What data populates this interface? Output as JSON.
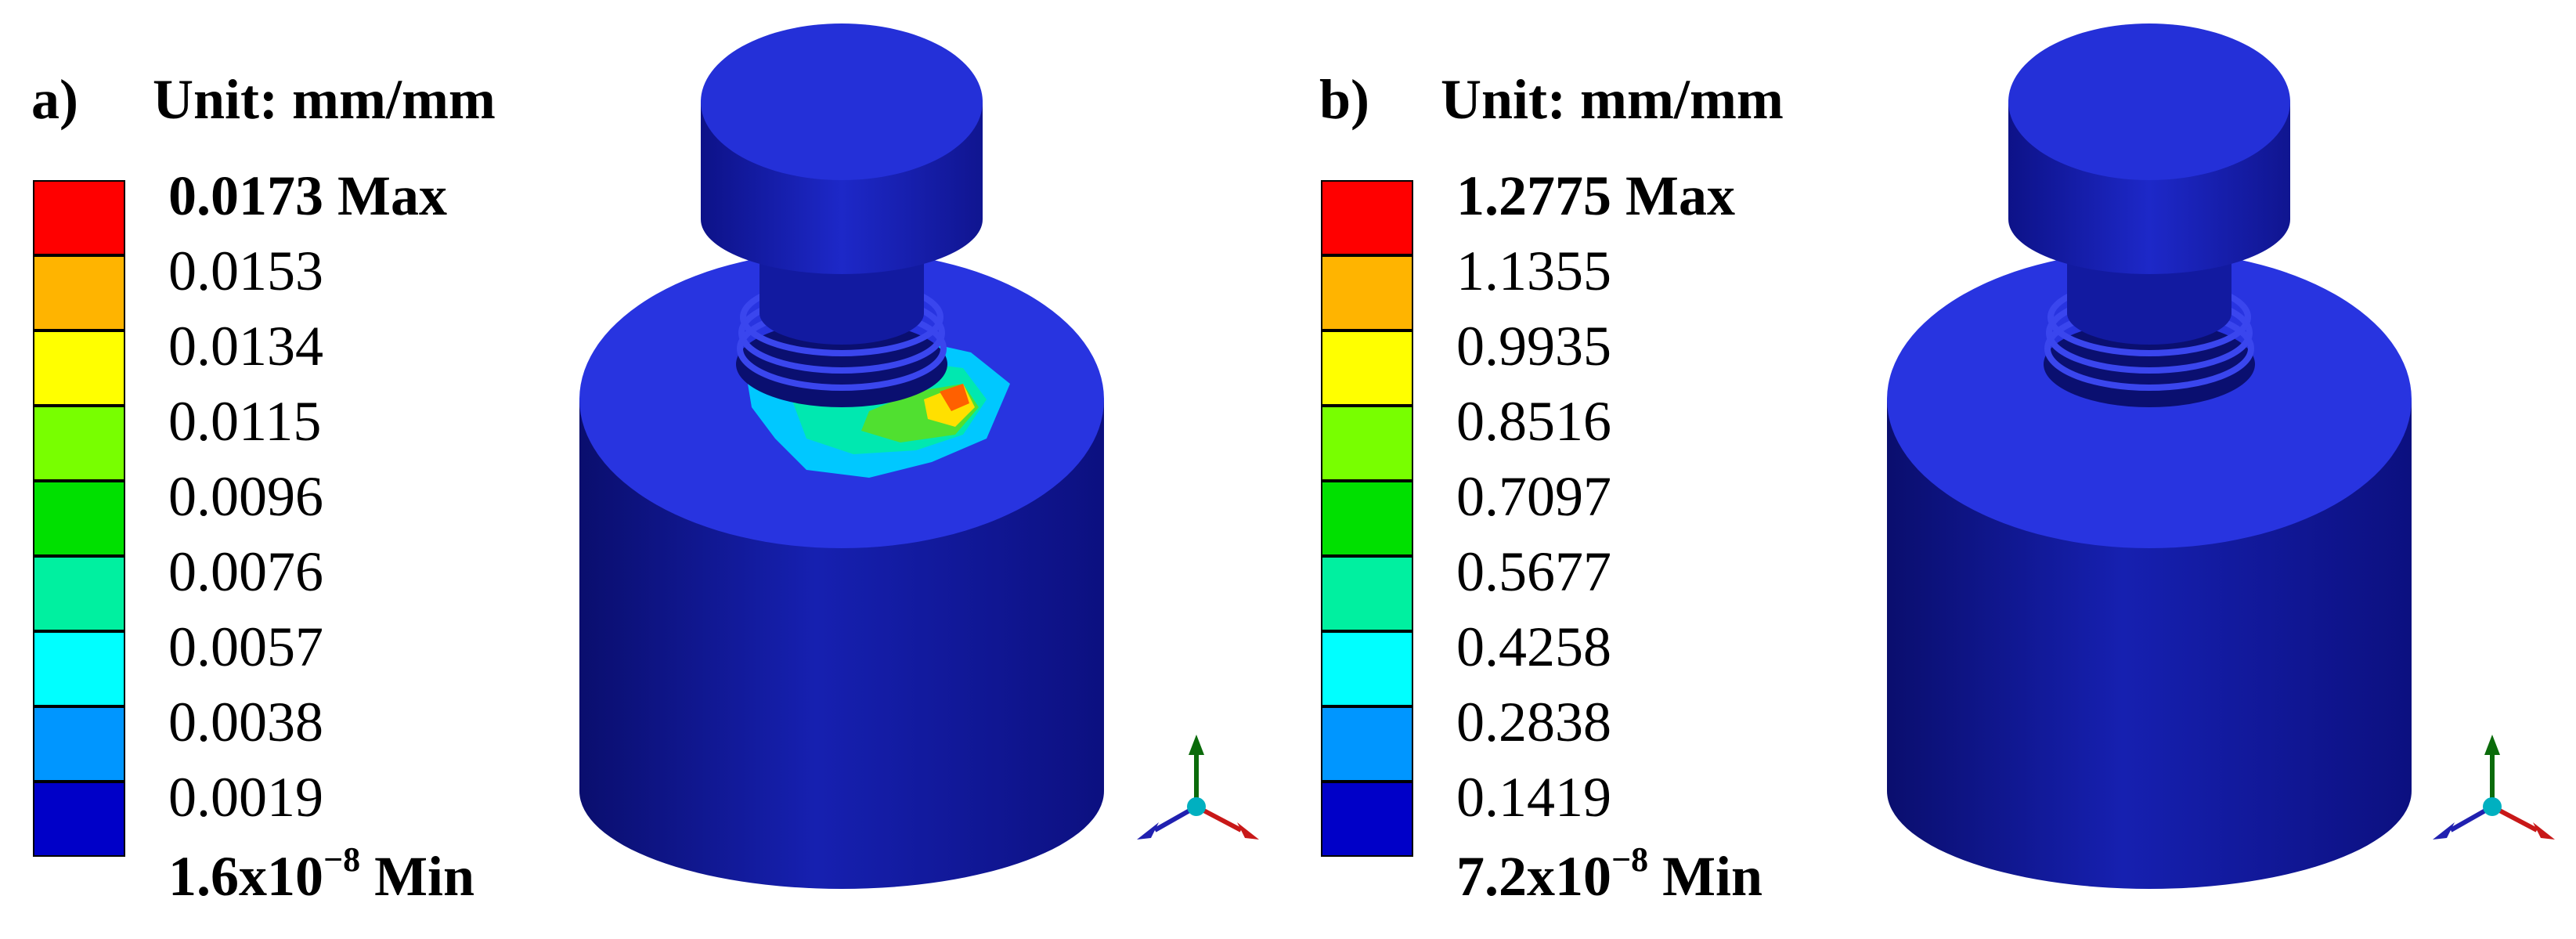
{
  "panels": [
    {
      "tag": "a)",
      "unit": "Unit: mm/mm",
      "max_label": "0.0173 Max",
      "levels": [
        "0.0153",
        "0.0134",
        "0.0115",
        "0.0096",
        "0.0076",
        "0.0057",
        "0.0038",
        "0.0019"
      ],
      "min_value": "1.6x10",
      "min_exp": "−8",
      "min_suffix": " Min",
      "hotspot": true
    },
    {
      "tag": "b)",
      "unit": "Unit: mm/mm",
      "max_label": "1.2775 Max",
      "levels": [
        "1.1355",
        "0.9935",
        "0.8516",
        "0.7097",
        "0.5677",
        "0.4258",
        "0.2838",
        "0.1419"
      ],
      "min_value": "7.2x10",
      "min_exp": "−8",
      "min_suffix": " Min",
      "hotspot": false
    }
  ],
  "colors": {
    "legend": [
      "#ff0000",
      "#ffb400",
      "#ffff00",
      "#78ff00",
      "#00e000",
      "#00f0a0",
      "#00ffff",
      "#0096ff",
      "#0000c8"
    ],
    "model_light": "#2a36e6",
    "model_dark": "#0b0f7a"
  }
}
